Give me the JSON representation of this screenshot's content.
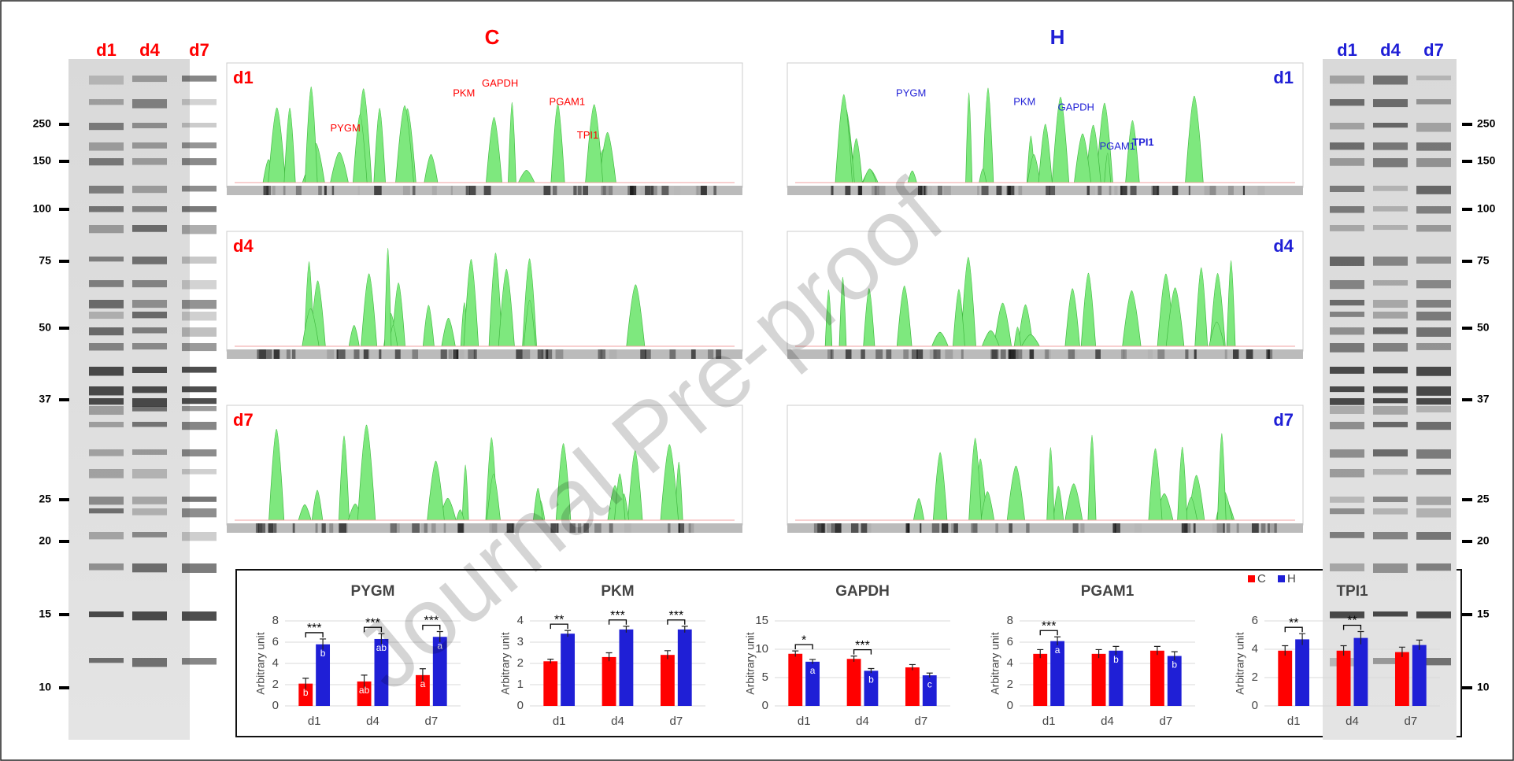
{
  "gels": {
    "left": {
      "lanes": [
        "d1",
        "d4",
        "d7"
      ],
      "markers": [
        "250",
        "150",
        "100",
        "75",
        "50",
        "37",
        "25",
        "20",
        "15",
        "10"
      ]
    },
    "right": {
      "lanes": [
        "d1",
        "d4",
        "d7"
      ],
      "markers": [
        "250",
        "150",
        "100",
        "75",
        "50",
        "37",
        "25",
        "20",
        "15",
        "10"
      ]
    }
  },
  "profiles": {
    "C": {
      "title": "C",
      "panels": [
        "d1",
        "d4",
        "d7"
      ],
      "peaks": [
        "PYGM",
        "PKM",
        "GAPDH",
        "PGAM1",
        "TPI1"
      ]
    },
    "H": {
      "title": "H",
      "panels": [
        "d1",
        "d4",
        "d7"
      ],
      "peaks": [
        "PYGM",
        "PKM",
        "GAPDH",
        "PGAM1",
        "TPI1"
      ]
    }
  },
  "watermark": "Journal Pre-proof",
  "legend": [
    "C",
    "H"
  ],
  "chart_data": [
    {
      "type": "bar",
      "title": "PYGM",
      "y_label": "Arbitrary unit",
      "categories": [
        "d1",
        "d4",
        "d7"
      ],
      "series": [
        {
          "name": "C",
          "color": "#ff0000",
          "values": [
            2.1,
            2.3,
            2.9
          ],
          "errors": [
            0.5,
            0.6,
            0.6
          ],
          "letters": [
            "b",
            "ab",
            "a"
          ]
        },
        {
          "name": "H",
          "color": "#1f1fd6",
          "values": [
            5.8,
            6.3,
            6.5
          ],
          "errors": [
            0.5,
            0.5,
            0.5
          ],
          "letters": [
            "b",
            "ab",
            "a"
          ]
        }
      ],
      "significance": [
        "***",
        "***",
        "***"
      ],
      "ylim": [
        0,
        8
      ],
      "yticks": [
        0,
        2,
        4,
        6,
        8
      ],
      "grid": true
    },
    {
      "type": "bar",
      "title": "PKM",
      "y_label": "Arbitrary unit",
      "categories": [
        "d1",
        "d4",
        "d7"
      ],
      "series": [
        {
          "name": "C",
          "color": "#ff0000",
          "values": [
            2.1,
            2.3,
            2.4
          ],
          "errors": [
            0.1,
            0.2,
            0.2
          ]
        },
        {
          "name": "H",
          "color": "#1f1fd6",
          "values": [
            3.4,
            3.6,
            3.6
          ],
          "errors": [
            0.15,
            0.15,
            0.15
          ]
        }
      ],
      "significance": [
        "**",
        "***",
        "***"
      ],
      "ylim": [
        0,
        4
      ],
      "yticks": [
        0,
        1,
        2,
        3,
        4
      ],
      "grid": true
    },
    {
      "type": "bar",
      "title": "GAPDH",
      "y_label": "Arbitrary unit",
      "categories": [
        "d1",
        "d4",
        "d7"
      ],
      "series": [
        {
          "name": "C",
          "color": "#ff0000",
          "values": [
            9.2,
            8.3,
            6.8
          ],
          "errors": [
            0.5,
            0.5,
            0.5
          ]
        },
        {
          "name": "H",
          "color": "#1f1fd6",
          "values": [
            7.8,
            6.2,
            5.4
          ],
          "errors": [
            0.4,
            0.4,
            0.4
          ],
          "letters": [
            "a",
            "b",
            "c"
          ]
        }
      ],
      "significance": [
        "*",
        "***",
        null
      ],
      "ylim": [
        0,
        15
      ],
      "yticks": [
        0,
        5,
        10,
        15
      ],
      "grid": true
    },
    {
      "type": "bar",
      "title": "PGAM1",
      "y_label": "Arbitrary unit",
      "categories": [
        "d1",
        "d4",
        "d7"
      ],
      "series": [
        {
          "name": "C",
          "color": "#ff0000",
          "values": [
            4.9,
            4.9,
            5.2
          ],
          "errors": [
            0.4,
            0.4,
            0.4
          ]
        },
        {
          "name": "H",
          "color": "#1f1fd6",
          "values": [
            6.1,
            5.2,
            4.7
          ],
          "errors": [
            0.4,
            0.4,
            0.4
          ],
          "letters": [
            "a",
            "b",
            "b"
          ]
        }
      ],
      "significance": [
        "***",
        null,
        null
      ],
      "ylim": [
        0,
        8
      ],
      "yticks": [
        0,
        2,
        4,
        6,
        8
      ],
      "grid": true
    },
    {
      "type": "bar",
      "title": "TPI1",
      "y_label": "Arbitrary unit",
      "categories": [
        "d1",
        "d4",
        "d7"
      ],
      "series": [
        {
          "name": "C",
          "color": "#ff0000",
          "values": [
            3.9,
            3.9,
            3.8
          ],
          "errors": [
            0.35,
            0.35,
            0.35
          ]
        },
        {
          "name": "H",
          "color": "#1f1fd6",
          "values": [
            4.7,
            4.8,
            4.3
          ],
          "errors": [
            0.4,
            0.45,
            0.35
          ]
        }
      ],
      "significance": [
        "**",
        "**",
        null
      ],
      "ylim": [
        0,
        6
      ],
      "yticks": [
        0,
        2,
        4,
        6
      ],
      "grid": true
    }
  ]
}
